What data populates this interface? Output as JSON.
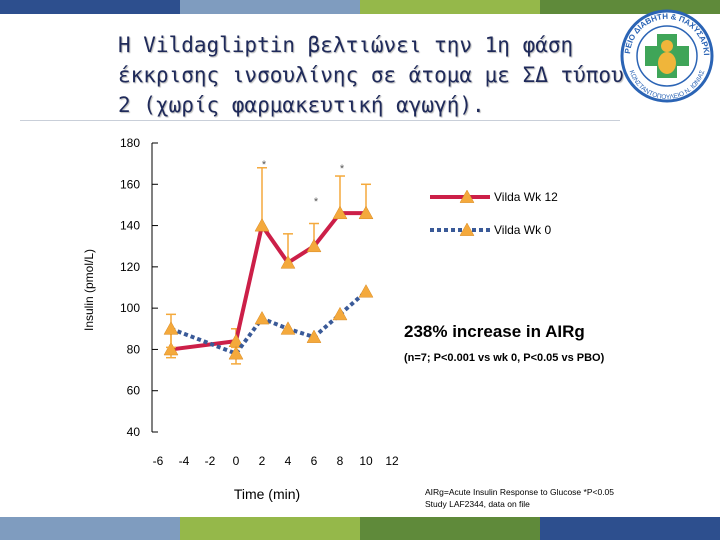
{
  "title_lines": [
    "Η Vildagliptin βελτιώνει την 1η φάση",
    "έκκρισης ινσουλίνης σε άτομα με ΣΔ τύπου",
    "2 (χωρίς φαρμακευτική αγωγή)."
  ],
  "logo": {
    "ring_text_top": "ΙΑΤΡΕΙΟ ΔΙΑΒΗΤΗ & ΠΑΧΥΣΑΡΚΙΑΣ",
    "ring_text_bottom": "ΚΩΝΣΤΑΝΤΟΠΟΥΛΕΙΟ Ν. ΙΩΝΙΑΣ",
    "colors": {
      "blue": "#2b64b5",
      "green": "#3fa558",
      "gold": "#f0b53a"
    }
  },
  "annotation": {
    "main": "238% increase in AIRg",
    "sub": "(n=7; P<0.001 vs wk 0, P<0.05 vs PBO)"
  },
  "footnote": [
    "AIRg=Acute Insulin Response to Glucose *P<0.05",
    "Study LAF2344, data on file"
  ],
  "colors": {
    "red_series": "#cc1f48",
    "blue_series": "#3a5a98",
    "marker": "#f4a93c",
    "errorbar": "#f4a93c",
    "header_bar": [
      "#2d4f8e",
      "#7f9cbf",
      "#95b84a",
      "#5f8a3a"
    ]
  },
  "chart_data": {
    "type": "line",
    "xlabel": "Time (min)",
    "ylabel": "Insulin (pmol/L)",
    "x_ticks": [
      -6,
      -4,
      -2,
      0,
      2,
      4,
      6,
      8,
      10,
      12
    ],
    "y_ticks": [
      40,
      60,
      80,
      100,
      120,
      140,
      160,
      180
    ],
    "ylim": [
      40,
      180
    ],
    "xlim": [
      -6,
      12
    ],
    "legend": [
      "Vilda Wk 12",
      "Vilda Wk 0"
    ],
    "legend_position": "right",
    "series": [
      {
        "name": "Vilda Wk 12",
        "x": [
          -5,
          0,
          2,
          4,
          6,
          8,
          10
        ],
        "y": [
          80,
          84,
          140,
          122,
          130,
          146,
          146
        ],
        "err_up": [
          8,
          6,
          28,
          14,
          11,
          18,
          14
        ],
        "err_down": [
          4,
          7,
          0,
          0,
          0,
          0,
          0
        ]
      },
      {
        "name": "Vilda Wk 0",
        "x": [
          -5,
          0,
          2,
          4,
          6,
          8,
          10
        ],
        "y": [
          90,
          78,
          95,
          90,
          86,
          97,
          108
        ],
        "err_up": [
          7,
          3,
          0,
          0,
          0,
          0,
          0
        ],
        "err_down": [
          9,
          5,
          0,
          0,
          0,
          0,
          0
        ]
      }
    ],
    "significance": [
      {
        "x": 2,
        "y": 168,
        "label": "*"
      },
      {
        "x": 8,
        "y": 166,
        "label": "*"
      },
      {
        "x": 6,
        "y": 150,
        "label": "*"
      }
    ]
  }
}
